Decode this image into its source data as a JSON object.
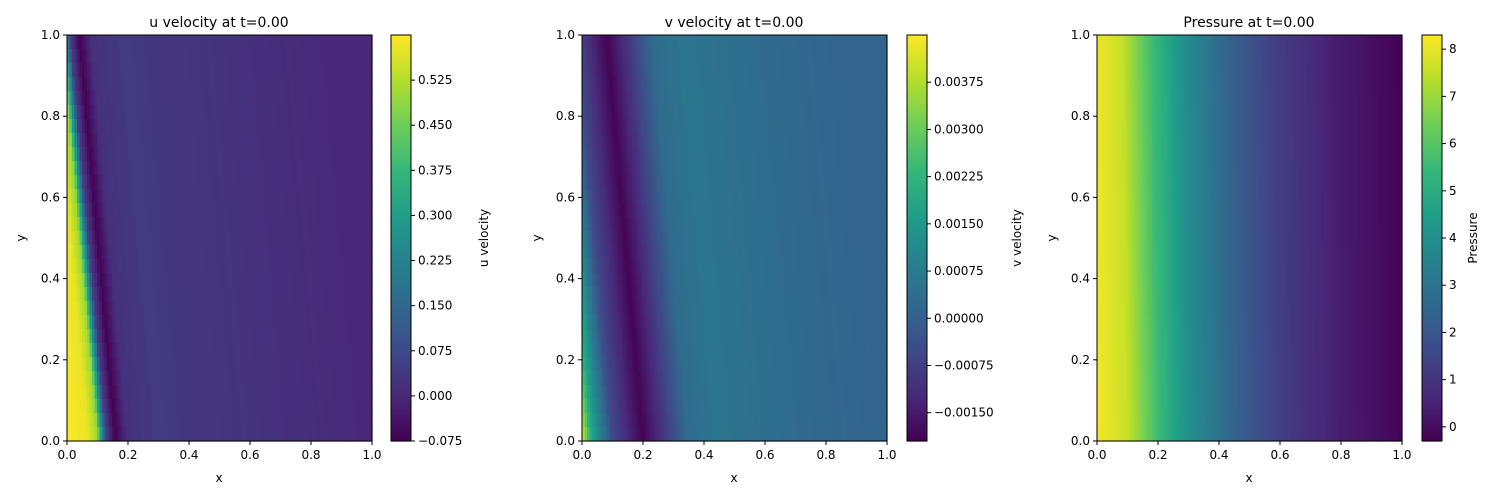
{
  "figure": {
    "colormap": [
      "#440154",
      "#482878",
      "#3e4a89",
      "#31688e",
      "#26828e",
      "#1f9e89",
      "#35b779",
      "#6ece58",
      "#b5de2b",
      "#fde725"
    ]
  },
  "chart_data": [
    {
      "type": "heatmap",
      "title": "u velocity at t=0.00",
      "xlabel": "x",
      "ylabel": "y",
      "xlim": [
        0,
        1
      ],
      "ylim": [
        0,
        1
      ],
      "x_ticks": [
        "0.0",
        "0.2",
        "0.4",
        "0.6",
        "0.8",
        "1.0"
      ],
      "y_ticks": [
        "0.0",
        "0.2",
        "0.4",
        "0.6",
        "0.8",
        "1.0"
      ],
      "colorbar": {
        "label": "u velocity",
        "range": [
          -0.075,
          0.6
        ],
        "ticks": [
          "−0.075",
          "0.000",
          "0.075",
          "0.150",
          "0.225",
          "0.300",
          "0.375",
          "0.450",
          "0.525"
        ],
        "tick_values": [
          -0.075,
          0,
          0.075,
          0.15,
          0.225,
          0.3,
          0.375,
          0.45,
          0.525
        ]
      },
      "field_profile": {
        "description_value_along_x_at_y0": [
          [
            0,
            0.6
          ],
          [
            0.07,
            0.58
          ],
          [
            0.1,
            0.5
          ],
          [
            0.13,
            0.05
          ],
          [
            0.16,
            -0.075
          ],
          [
            0.2,
            0.02
          ],
          [
            0.3,
            0.04
          ],
          [
            0.7,
            0.02
          ],
          [
            1.0,
            0.0
          ]
        ],
        "tilt_dx_per_unit_y": -0.12
      }
    },
    {
      "type": "heatmap",
      "title": "v velocity at t=0.00",
      "xlabel": "x",
      "ylabel": "y",
      "xlim": [
        0,
        1
      ],
      "ylim": [
        0,
        1
      ],
      "x_ticks": [
        "0.0",
        "0.2",
        "0.4",
        "0.6",
        "0.8",
        "1.0"
      ],
      "y_ticks": [
        "0.0",
        "0.2",
        "0.4",
        "0.6",
        "0.8",
        "1.0"
      ],
      "colorbar": {
        "label": "v velocity",
        "range": [
          -0.00195,
          0.0045
        ],
        "ticks": [
          "−0.00150",
          "−0.00075",
          "0.00000",
          "0.00075",
          "0.00150",
          "0.00225",
          "0.00300",
          "0.00375"
        ],
        "tick_values": [
          -0.0015,
          -0.00075,
          0,
          0.00075,
          0.0015,
          0.00225,
          0.003,
          0.00375
        ]
      },
      "field_profile": {
        "description_value_along_x_at_y0": [
          [
            0,
            0.0042
          ],
          [
            0.03,
            0.002
          ],
          [
            0.1,
            -0.0005
          ],
          [
            0.2,
            -0.0019
          ],
          [
            0.25,
            -0.0012
          ],
          [
            0.35,
            0.0003
          ],
          [
            0.45,
            0.0006
          ],
          [
            0.6,
            0.0004
          ],
          [
            0.8,
            0.0002
          ],
          [
            1.0,
            0.0001
          ]
        ],
        "tilt_dx_per_unit_y": -0.12
      }
    },
    {
      "type": "heatmap",
      "title": "Pressure at t=0.00",
      "xlabel": "x",
      "ylabel": "y",
      "xlim": [
        0,
        1
      ],
      "ylim": [
        0,
        1
      ],
      "x_ticks": [
        "0.0",
        "0.2",
        "0.4",
        "0.6",
        "0.8",
        "1.0"
      ],
      "y_ticks": [
        "0.0",
        "0.2",
        "0.4",
        "0.6",
        "0.8",
        "1.0"
      ],
      "colorbar": {
        "label": "Pressure",
        "range": [
          -0.3,
          8.3
        ],
        "ticks": [
          "0",
          "1",
          "2",
          "3",
          "4",
          "5",
          "6",
          "7",
          "8"
        ],
        "tick_values": [
          0,
          1,
          2,
          3,
          4,
          5,
          6,
          7,
          8
        ]
      },
      "field_profile": {
        "description_value_along_x_at_y0": [
          [
            0,
            8.2
          ],
          [
            0.1,
            7.6
          ],
          [
            0.2,
            5.6
          ],
          [
            0.3,
            4.0
          ],
          [
            0.45,
            2.4
          ],
          [
            0.6,
            1.3
          ],
          [
            0.8,
            0.4
          ],
          [
            1.0,
            -0.2
          ]
        ],
        "tilt_dx_per_unit_y": -0.02
      }
    }
  ]
}
